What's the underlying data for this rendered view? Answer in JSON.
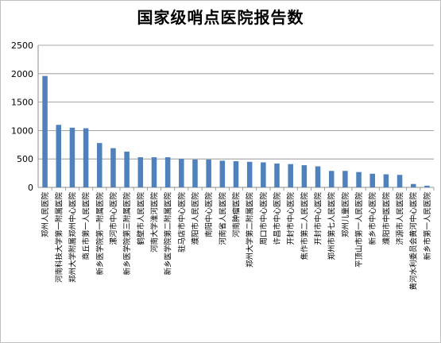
{
  "chart_data": {
    "type": "bar",
    "title": "国家级哨点医院报告数",
    "xlabel": "",
    "ylabel": "",
    "ylim": [
      0,
      2500
    ],
    "yticks": [
      0,
      500,
      1000,
      1500,
      2000,
      2500
    ],
    "grid": true,
    "legend": "none",
    "bar_color": "#4f81bd",
    "categories": [
      "郑州人民医院",
      "河南科技大学第一附属医院",
      "郑州大学附属郑州中心医院",
      "商丘市第一人民医院",
      "新乡医学院第一附属医院",
      "漯河市中心医院",
      "新乡医学院第三附属医院",
      "鹤壁市人民医院",
      "河南大学淮河医院",
      "新乡医学院第二附属医院",
      "驻马店市中心医院",
      "濮阳市人民医院",
      "南阳中心医院",
      "河南省人民医院",
      "河南肿瘤医院",
      "郑州大学第二附属医院",
      "周口市中心医院",
      "许昌市中心医院",
      "开封市中心医院",
      "焦作市第二人民医院",
      "开封市中心医院",
      "郑州市第七人民医院",
      "郑州儿童医院",
      "平顶山市第一人民医院",
      "新乡市中心医院",
      "濮阳市中医医院",
      "济源市人民医院",
      "黄河水利委员会黄河中心医院",
      "新乡市第一人民医院"
    ],
    "values": [
      1960,
      1100,
      1050,
      1040,
      780,
      690,
      630,
      530,
      530,
      530,
      500,
      490,
      490,
      470,
      460,
      450,
      440,
      420,
      410,
      390,
      370,
      290,
      290,
      270,
      240,
      230,
      220,
      60,
      30
    ]
  }
}
